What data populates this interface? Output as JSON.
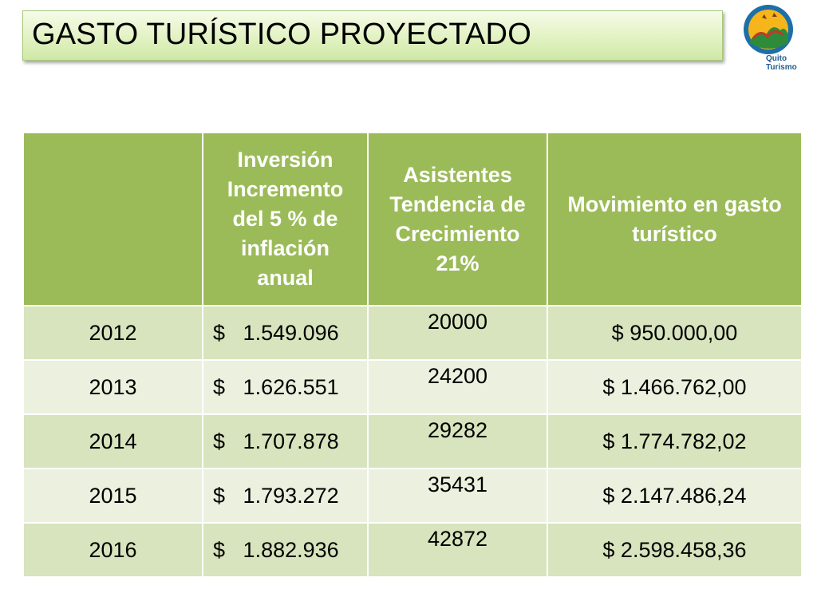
{
  "title": "GASTO TURÍSTICO PROYECTADO",
  "logo": {
    "icon": "quito-turismo-logo-icon",
    "line1": "Quito",
    "line2": "Turismo"
  },
  "table": {
    "headers": [
      {
        "lines": [
          ""
        ]
      },
      {
        "lines": [
          "Inversión",
          "Incremento",
          "del 5 % de",
          "inflación",
          "anual"
        ]
      },
      {
        "lines": [
          "Asistentes",
          "Tendencia de",
          "Crecimiento",
          "21%"
        ]
      },
      {
        "lines": [
          "Movimiento en gasto",
          "turístico"
        ]
      }
    ],
    "rows": [
      {
        "year": "2012",
        "inversion_symbol": "$",
        "inversion": "1.549.096",
        "asistentes": "20000",
        "movimiento": "$ 950.000,00"
      },
      {
        "year": "2013",
        "inversion_symbol": "$",
        "inversion": "1.626.551",
        "asistentes": "24200",
        "movimiento": "$ 1.466.762,00"
      },
      {
        "year": "2014",
        "inversion_symbol": "$",
        "inversion": "1.707.878",
        "asistentes": "29282",
        "movimiento": "$ 1.774.782,02"
      },
      {
        "year": "2015",
        "inversion_symbol": "$",
        "inversion": "1.793.272",
        "asistentes": "35431",
        "movimiento": "$ 2.147.486,24"
      },
      {
        "year": "2016",
        "inversion_symbol": "$",
        "inversion": "1.882.936",
        "asistentes": "42872",
        "movimiento": "$ 2.598.458,36"
      }
    ]
  },
  "colors": {
    "header": "#9bbb59",
    "row_odd": "#d7e4bd",
    "row_even": "#ebf1de",
    "title_bg": "#e2f2c2"
  }
}
